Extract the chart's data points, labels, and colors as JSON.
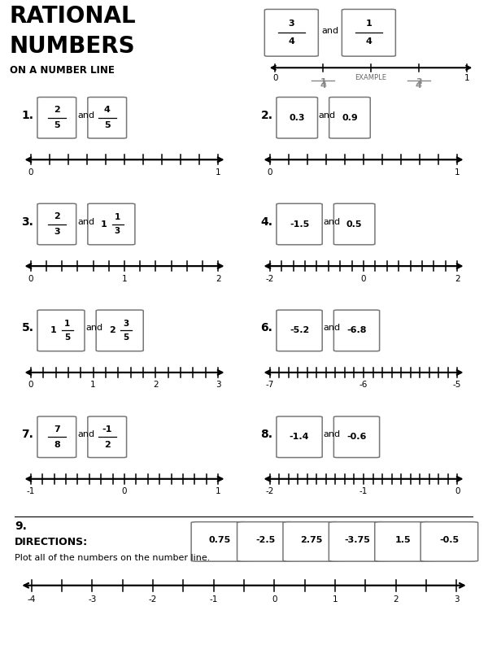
{
  "bg_color": "#ffffff",
  "title_line1": "RATIONAL",
  "title_line2": "NUMBERS",
  "title_line3": "ON A NUMBER LINE",
  "problems": [
    {
      "num": "1",
      "label1": "2/5",
      "label1_frac": true,
      "label2": "4/5",
      "label2_frac": true,
      "xmin": 0,
      "xmax": 1,
      "ticks": 10,
      "tick_labels": [
        "0",
        "1"
      ]
    },
    {
      "num": "2",
      "label1": "0.3",
      "label1_frac": false,
      "label2": "0.9",
      "label2_frac": false,
      "xmin": 0,
      "xmax": 1,
      "ticks": 10,
      "tick_labels": [
        "0",
        "1"
      ]
    },
    {
      "num": "3",
      "label1": "2/3",
      "label1_frac": true,
      "label2": "1 1/3",
      "label2_frac": true,
      "xmin": 0,
      "xmax": 2,
      "ticks": 12,
      "tick_labels": [
        "0",
        "1",
        "2"
      ]
    },
    {
      "num": "4",
      "label1": "-1.5",
      "label1_frac": false,
      "label2": "0.5",
      "label2_frac": false,
      "xmin": -2,
      "xmax": 2,
      "ticks": 16,
      "tick_labels": [
        "-2",
        "0",
        "2"
      ]
    },
    {
      "num": "5",
      "label1": "1 1/5",
      "label1_frac": true,
      "label2": "2 3/5",
      "label2_frac": true,
      "xmin": 0,
      "xmax": 3,
      "ticks": 15,
      "tick_labels": [
        "0",
        "1",
        "2",
        "3"
      ]
    },
    {
      "num": "6",
      "label1": "-5.2",
      "label1_frac": false,
      "label2": "-6.8",
      "label2_frac": false,
      "xmin": -7,
      "xmax": -5,
      "ticks": 20,
      "tick_labels": [
        "-7",
        "-6",
        "-5"
      ]
    },
    {
      "num": "7",
      "label1": "7/8",
      "label1_frac": true,
      "label2": "-1/2",
      "label2_frac": true,
      "xmin": -1,
      "xmax": 1,
      "ticks": 16,
      "tick_labels": [
        "-1",
        "0",
        "1"
      ]
    },
    {
      "num": "8",
      "label1": "-1.4",
      "label1_frac": false,
      "label2": "-0.6",
      "label2_frac": false,
      "xmin": -2,
      "xmax": 0,
      "ticks": 20,
      "tick_labels": [
        "-2",
        "-1",
        "0"
      ]
    }
  ],
  "problem9": {
    "num": "9",
    "value_labels": [
      "0.75",
      "-2.5",
      "2.75",
      "-3.75",
      "1.5",
      "-0.5"
    ],
    "xmin": -4,
    "xmax": 3,
    "ticks": 14,
    "tick_labels": [
      "-4",
      "-3",
      "-2",
      "-1",
      "0",
      "1",
      "2",
      "3"
    ]
  }
}
